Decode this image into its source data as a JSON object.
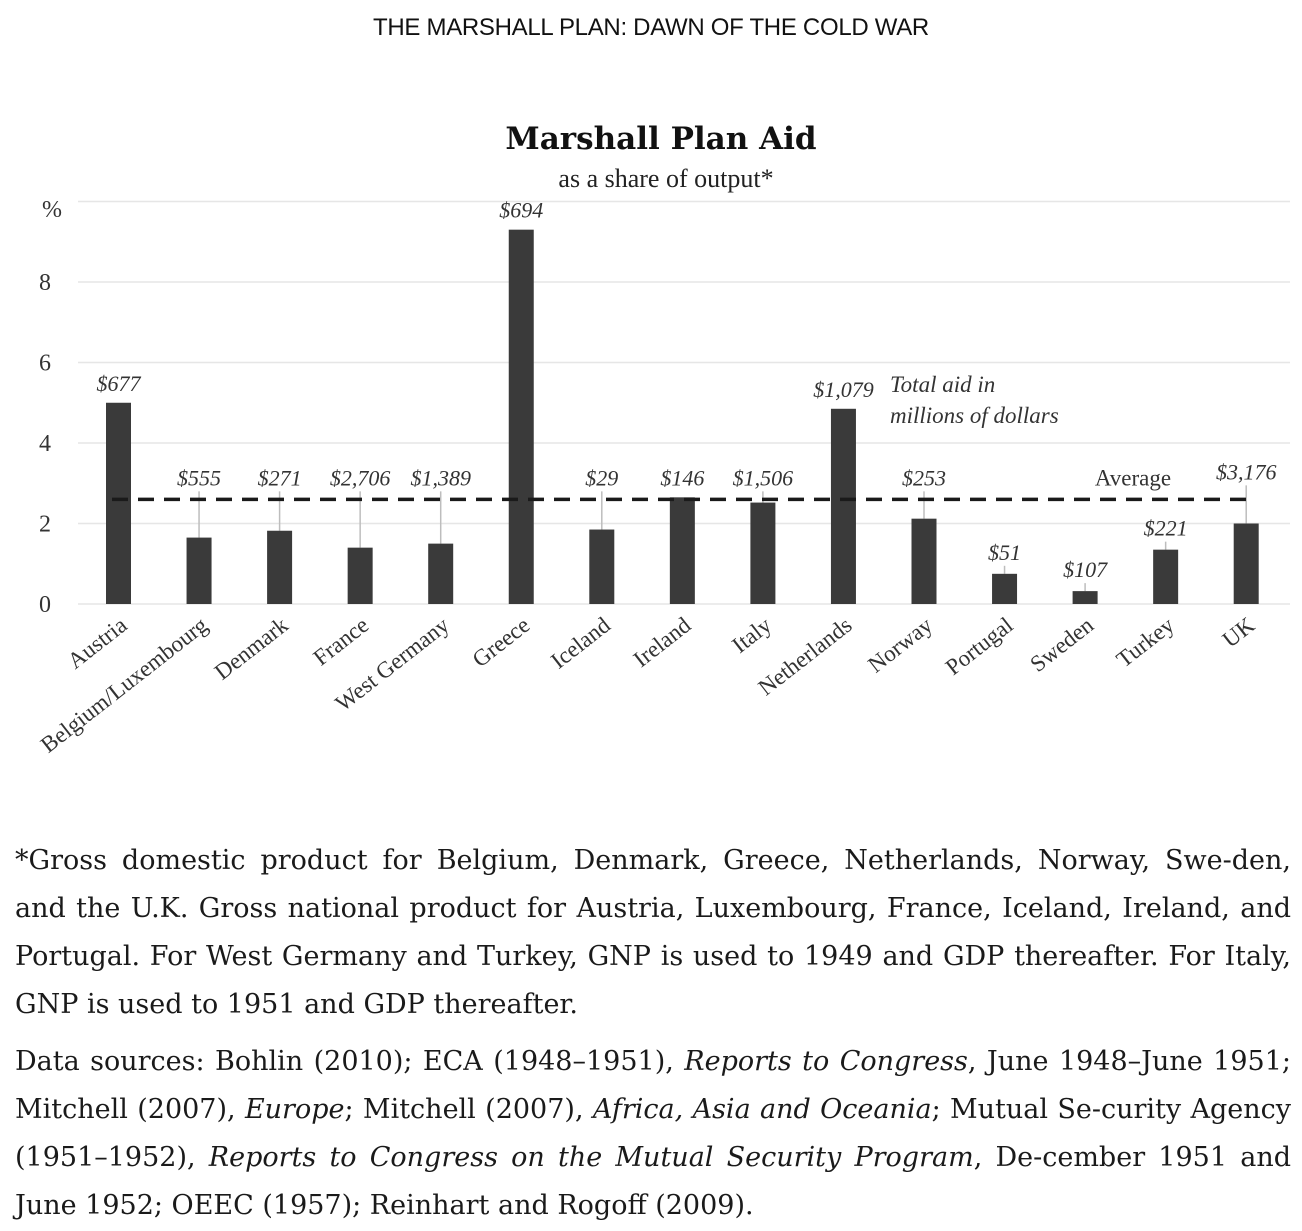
{
  "page": {
    "header": "THE MARSHALL PLAN: DAWN OF THE COLD WAR",
    "footnote": "*Gross domestic product for Belgium, Denmark, Greece, Netherlands, Norway, Swe-den, and the U.K. Gross national product for Austria, Luxembourg, France, Iceland, Ireland, and Portugal. For West Germany and Turkey, GNP is used to 1949 and GDP thereafter. For Italy, GNP is used to 1951 and GDP thereafter.",
    "sources": [
      {
        "text": "Data sources: Bohlin (2010); ECA (1948–1951), ",
        "italic": false
      },
      {
        "text": "Reports to Congress",
        "italic": true
      },
      {
        "text": ", June 1948–June 1951; Mitchell (2007), ",
        "italic": false
      },
      {
        "text": "Europe",
        "italic": true
      },
      {
        "text": "; Mitchell (2007), ",
        "italic": false
      },
      {
        "text": "Africa, Asia and Oceania",
        "italic": true
      },
      {
        "text": "; Mutual Se-curity Agency (1951–1952), ",
        "italic": false
      },
      {
        "text": "Reports to Congress on the Mutual Security Program",
        "italic": true
      },
      {
        "text": ", De-cember 1951 and June 1952; OEEC (1957); Reinhart and Rogoff (2009).",
        "italic": false
      }
    ]
  },
  "chart_data": {
    "type": "bar",
    "title": "Marshall Plan Aid",
    "subtitle": "as a share of output*",
    "ylabel": "%",
    "ylim": [
      0,
      10
    ],
    "yticks": [
      0,
      2,
      4,
      6,
      8
    ],
    "grid": true,
    "categories": [
      "Austria",
      "Belgium/Luxembourg",
      "Denmark",
      "France",
      "West Germany",
      "Greece",
      "Iceland",
      "Ireland",
      "Italy",
      "Netherlands",
      "Norway",
      "Portugal",
      "Sweden",
      "Turkey",
      "UK"
    ],
    "values": [
      5.0,
      1.65,
      1.82,
      1.4,
      1.5,
      9.3,
      1.85,
      2.65,
      2.52,
      4.85,
      2.12,
      0.75,
      0.32,
      1.35,
      2.0
    ],
    "aid_labels": [
      "$677",
      "$555",
      "$271",
      "$2,706",
      "$1,389",
      "$694",
      "$29",
      "$146",
      "$1,506",
      "$1,079",
      "$253",
      "$51",
      "$107",
      "$221",
      "$3,176"
    ],
    "aid_annotation": "Total aid in millions of dollars",
    "average": 2.6,
    "average_label": "Average",
    "colors": {
      "bar": "#3a3a3a",
      "grid": "#e6e6e6",
      "average_line": "#1a1a1a",
      "connector": "#bdbdbd"
    }
  }
}
